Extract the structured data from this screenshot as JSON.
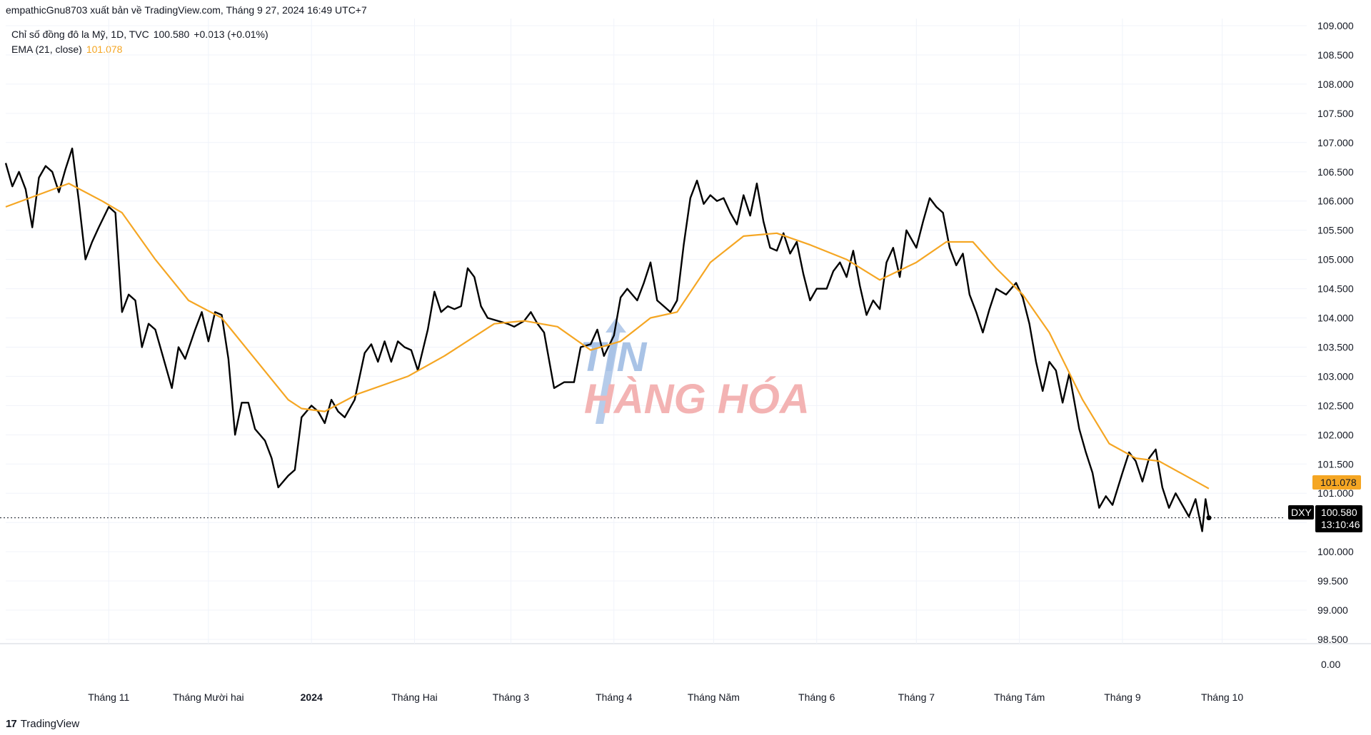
{
  "attribution": "empathicGnu8703 xuất bản về TradingView.com, Tháng 9 27, 2024 16:49 UTC+7",
  "legend": {
    "symbol_line": "Chỉ số đồng đô la Mỹ, 1D, TVC",
    "price": "100.580",
    "change": "+0.013 (+0.01%)",
    "ema_label": "EMA (21, close)",
    "ema_value": "101.078"
  },
  "price_badges": {
    "ema": "101.078",
    "ticker": "DXY",
    "last": "100.580",
    "countdown": "13:10:46"
  },
  "watermark": {
    "line1": "TIN",
    "line2": "HÀNG HÓA"
  },
  "footer": {
    "logo_text": "TradingView",
    "logo_icon": "tradingview-logo-icon"
  },
  "colors": {
    "price": "#000000",
    "ema": "#f5a623",
    "badge_ema": "#f5a623",
    "badge_dark": "#000000"
  },
  "chart_data": {
    "type": "line",
    "x_tick_labels": [
      "Tháng 11",
      "Tháng Mười hai",
      "2024",
      "Tháng Hai",
      "Tháng 3",
      "Tháng 4",
      "Tháng Năm",
      "Tháng 6",
      "Tháng 7",
      "Tháng Tám",
      "Tháng 9",
      "Tháng 10"
    ],
    "y_tick_labels": [
      "109.000",
      "108.500",
      "108.000",
      "107.500",
      "107.000",
      "106.500",
      "106.000",
      "105.500",
      "105.000",
      "104.500",
      "104.000",
      "103.500",
      "103.000",
      "102.500",
      "102.000",
      "101.500",
      "101.000",
      "100.500",
      "100.000",
      "99.500",
      "99.000",
      "98.500"
    ],
    "y_ticks": [
      109,
      108.5,
      108,
      107.5,
      107,
      106.5,
      106,
      105.5,
      105,
      104.5,
      104,
      103.5,
      103,
      102.5,
      102,
      101.5,
      101,
      100.5,
      100,
      99.5,
      99,
      98.5
    ],
    "ylim": [
      98.5,
      109
    ],
    "sub_pane_label": "0.00",
    "last_price": 100.58,
    "series": [
      {
        "name": "Chỉ số đồng đô la Mỹ",
        "color": "#000000",
        "points": [
          [
            "2023-10-01",
            106.65
          ],
          [
            "2023-10-03",
            106.25
          ],
          [
            "2023-10-05",
            106.5
          ],
          [
            "2023-10-07",
            106.2
          ],
          [
            "2023-10-09",
            105.55
          ],
          [
            "2023-10-11",
            106.4
          ],
          [
            "2023-10-13",
            106.6
          ],
          [
            "2023-10-15",
            106.5
          ],
          [
            "2023-10-17",
            106.15
          ],
          [
            "2023-10-19",
            106.55
          ],
          [
            "2023-10-21",
            106.9
          ],
          [
            "2023-10-23",
            106.0
          ],
          [
            "2023-10-25",
            105.0
          ],
          [
            "2023-10-27",
            105.3
          ],
          [
            "2023-10-29",
            105.55
          ],
          [
            "2023-11-01",
            105.9
          ],
          [
            "2023-11-03",
            105.8
          ],
          [
            "2023-11-05",
            104.1
          ],
          [
            "2023-11-07",
            104.4
          ],
          [
            "2023-11-09",
            104.3
          ],
          [
            "2023-11-11",
            103.5
          ],
          [
            "2023-11-13",
            103.9
          ],
          [
            "2023-11-15",
            103.8
          ],
          [
            "2023-11-17",
            103.4
          ],
          [
            "2023-11-20",
            102.8
          ],
          [
            "2023-11-22",
            103.5
          ],
          [
            "2023-11-24",
            103.3
          ],
          [
            "2023-11-27",
            103.8
          ],
          [
            "2023-11-29",
            104.1
          ],
          [
            "2023-12-01",
            103.6
          ],
          [
            "2023-12-03",
            104.1
          ],
          [
            "2023-12-05",
            104.05
          ],
          [
            "2023-12-07",
            103.3
          ],
          [
            "2023-12-09",
            102.0
          ],
          [
            "2023-12-11",
            102.55
          ],
          [
            "2023-12-13",
            102.55
          ],
          [
            "2023-12-15",
            102.1
          ],
          [
            "2023-12-18",
            101.9
          ],
          [
            "2023-12-20",
            101.6
          ],
          [
            "2023-12-22",
            101.1
          ],
          [
            "2023-12-25",
            101.3
          ],
          [
            "2023-12-27",
            101.4
          ],
          [
            "2023-12-29",
            102.3
          ],
          [
            "2024-01-01",
            102.5
          ],
          [
            "2024-01-03",
            102.4
          ],
          [
            "2024-01-05",
            102.2
          ],
          [
            "2024-01-07",
            102.6
          ],
          [
            "2024-01-09",
            102.4
          ],
          [
            "2024-01-11",
            102.3
          ],
          [
            "2024-01-14",
            102.6
          ],
          [
            "2024-01-17",
            103.4
          ],
          [
            "2024-01-19",
            103.55
          ],
          [
            "2024-01-21",
            103.25
          ],
          [
            "2024-01-23",
            103.6
          ],
          [
            "2024-01-25",
            103.25
          ],
          [
            "2024-01-27",
            103.6
          ],
          [
            "2024-01-29",
            103.5
          ],
          [
            "2024-01-31",
            103.45
          ],
          [
            "2024-02-02",
            103.1
          ],
          [
            "2024-02-05",
            103.8
          ],
          [
            "2024-02-07",
            104.45
          ],
          [
            "2024-02-09",
            104.1
          ],
          [
            "2024-02-11",
            104.2
          ],
          [
            "2024-02-13",
            104.15
          ],
          [
            "2024-02-15",
            104.2
          ],
          [
            "2024-02-17",
            104.85
          ],
          [
            "2024-02-19",
            104.7
          ],
          [
            "2024-02-21",
            104.2
          ],
          [
            "2024-02-23",
            104.0
          ],
          [
            "2024-02-26",
            103.95
          ],
          [
            "2024-02-29",
            103.9
          ],
          [
            "2024-03-02",
            103.85
          ],
          [
            "2024-03-05",
            103.95
          ],
          [
            "2024-03-07",
            104.1
          ],
          [
            "2024-03-09",
            103.9
          ],
          [
            "2024-03-11",
            103.75
          ],
          [
            "2024-03-14",
            102.8
          ],
          [
            "2024-03-17",
            102.9
          ],
          [
            "2024-03-20",
            102.9
          ],
          [
            "2024-03-22",
            103.5
          ],
          [
            "2024-03-25",
            103.55
          ],
          [
            "2024-03-27",
            103.8
          ],
          [
            "2024-03-29",
            103.35
          ],
          [
            "2024-04-01",
            103.7
          ],
          [
            "2024-04-03",
            104.35
          ],
          [
            "2024-04-05",
            104.5
          ],
          [
            "2024-04-08",
            104.3
          ],
          [
            "2024-04-10",
            104.6
          ],
          [
            "2024-04-12",
            104.95
          ],
          [
            "2024-04-14",
            104.3
          ],
          [
            "2024-04-16",
            104.2
          ],
          [
            "2024-04-18",
            104.1
          ],
          [
            "2024-04-20",
            104.3
          ],
          [
            "2024-04-22",
            105.25
          ],
          [
            "2024-04-24",
            106.05
          ],
          [
            "2024-04-26",
            106.35
          ],
          [
            "2024-04-28",
            105.95
          ],
          [
            "2024-04-30",
            106.1
          ],
          [
            "2024-05-02",
            106.0
          ],
          [
            "2024-05-04",
            106.05
          ],
          [
            "2024-05-06",
            105.8
          ],
          [
            "2024-05-08",
            105.6
          ],
          [
            "2024-05-10",
            106.1
          ],
          [
            "2024-05-12",
            105.75
          ],
          [
            "2024-05-14",
            106.3
          ],
          [
            "2024-05-16",
            105.65
          ],
          [
            "2024-05-18",
            105.2
          ],
          [
            "2024-05-20",
            105.15
          ],
          [
            "2024-05-22",
            105.45
          ],
          [
            "2024-05-24",
            105.1
          ],
          [
            "2024-05-26",
            105.3
          ],
          [
            "2024-05-28",
            104.75
          ],
          [
            "2024-05-30",
            104.3
          ],
          [
            "2024-06-01",
            104.5
          ],
          [
            "2024-06-04",
            104.5
          ],
          [
            "2024-06-06",
            104.8
          ],
          [
            "2024-06-08",
            104.95
          ],
          [
            "2024-06-10",
            104.7
          ],
          [
            "2024-06-12",
            105.15
          ],
          [
            "2024-06-14",
            104.55
          ],
          [
            "2024-06-16",
            104.05
          ],
          [
            "2024-06-18",
            104.3
          ],
          [
            "2024-06-20",
            104.15
          ],
          [
            "2024-06-22",
            104.95
          ],
          [
            "2024-06-24",
            105.2
          ],
          [
            "2024-06-26",
            104.7
          ],
          [
            "2024-06-28",
            105.5
          ],
          [
            "2024-07-01",
            105.2
          ],
          [
            "2024-07-03",
            105.65
          ],
          [
            "2024-07-05",
            106.05
          ],
          [
            "2024-07-07",
            105.9
          ],
          [
            "2024-07-09",
            105.8
          ],
          [
            "2024-07-11",
            105.2
          ],
          [
            "2024-07-13",
            104.9
          ],
          [
            "2024-07-15",
            105.1
          ],
          [
            "2024-07-17",
            104.4
          ],
          [
            "2024-07-19",
            104.1
          ],
          [
            "2024-07-21",
            103.75
          ],
          [
            "2024-07-23",
            104.15
          ],
          [
            "2024-07-25",
            104.5
          ],
          [
            "2024-07-28",
            104.4
          ],
          [
            "2024-07-31",
            104.6
          ],
          [
            "2024-08-02",
            104.35
          ],
          [
            "2024-08-04",
            103.9
          ],
          [
            "2024-08-06",
            103.25
          ],
          [
            "2024-08-08",
            102.75
          ],
          [
            "2024-08-10",
            103.25
          ],
          [
            "2024-08-12",
            103.1
          ],
          [
            "2024-08-14",
            102.55
          ],
          [
            "2024-08-16",
            103.05
          ],
          [
            "2024-08-19",
            102.1
          ],
          [
            "2024-08-21",
            101.7
          ],
          [
            "2024-08-23",
            101.35
          ],
          [
            "2024-08-25",
            100.75
          ],
          [
            "2024-08-27",
            100.95
          ],
          [
            "2024-08-29",
            100.8
          ],
          [
            "2024-09-01",
            101.35
          ],
          [
            "2024-09-03",
            101.7
          ],
          [
            "2024-09-05",
            101.55
          ],
          [
            "2024-09-07",
            101.2
          ],
          [
            "2024-09-09",
            101.6
          ],
          [
            "2024-09-11",
            101.75
          ],
          [
            "2024-09-13",
            101.1
          ],
          [
            "2024-09-15",
            100.75
          ],
          [
            "2024-09-17",
            101.0
          ],
          [
            "2024-09-19",
            100.8
          ],
          [
            "2024-09-21",
            100.6
          ],
          [
            "2024-09-23",
            100.9
          ],
          [
            "2024-09-25",
            100.35
          ],
          [
            "2024-09-26",
            100.9
          ],
          [
            "2024-09-27",
            100.58
          ]
        ]
      },
      {
        "name": "EMA (21, close)",
        "color": "#f5a623",
        "points": [
          [
            "2023-10-01",
            105.9
          ],
          [
            "2023-10-20",
            106.3
          ],
          [
            "2023-10-30",
            106.0
          ],
          [
            "2023-11-05",
            105.8
          ],
          [
            "2023-11-15",
            105.0
          ],
          [
            "2023-11-25",
            104.3
          ],
          [
            "2023-12-05",
            104.0
          ],
          [
            "2023-12-15",
            103.3
          ],
          [
            "2023-12-25",
            102.6
          ],
          [
            "2023-12-29",
            102.45
          ],
          [
            "2024-01-05",
            102.4
          ],
          [
            "2024-01-15",
            102.7
          ],
          [
            "2024-01-30",
            103.0
          ],
          [
            "2024-02-10",
            103.35
          ],
          [
            "2024-02-25",
            103.9
          ],
          [
            "2024-03-05",
            103.95
          ],
          [
            "2024-03-15",
            103.85
          ],
          [
            "2024-03-25",
            103.45
          ],
          [
            "2024-04-03",
            103.6
          ],
          [
            "2024-04-12",
            104.0
          ],
          [
            "2024-04-20",
            104.1
          ],
          [
            "2024-04-30",
            104.95
          ],
          [
            "2024-05-10",
            105.4
          ],
          [
            "2024-05-20",
            105.45
          ],
          [
            "2024-05-30",
            105.25
          ],
          [
            "2024-06-10",
            105.0
          ],
          [
            "2024-06-20",
            104.65
          ],
          [
            "2024-07-01",
            104.95
          ],
          [
            "2024-07-10",
            105.3
          ],
          [
            "2024-07-18",
            105.3
          ],
          [
            "2024-07-25",
            104.85
          ],
          [
            "2024-08-02",
            104.4
          ],
          [
            "2024-08-10",
            103.75
          ],
          [
            "2024-08-20",
            102.6
          ],
          [
            "2024-08-28",
            101.85
          ],
          [
            "2024-09-05",
            101.6
          ],
          [
            "2024-09-12",
            101.55
          ],
          [
            "2024-09-20",
            101.3
          ],
          [
            "2024-09-27",
            101.08
          ]
        ]
      }
    ]
  }
}
